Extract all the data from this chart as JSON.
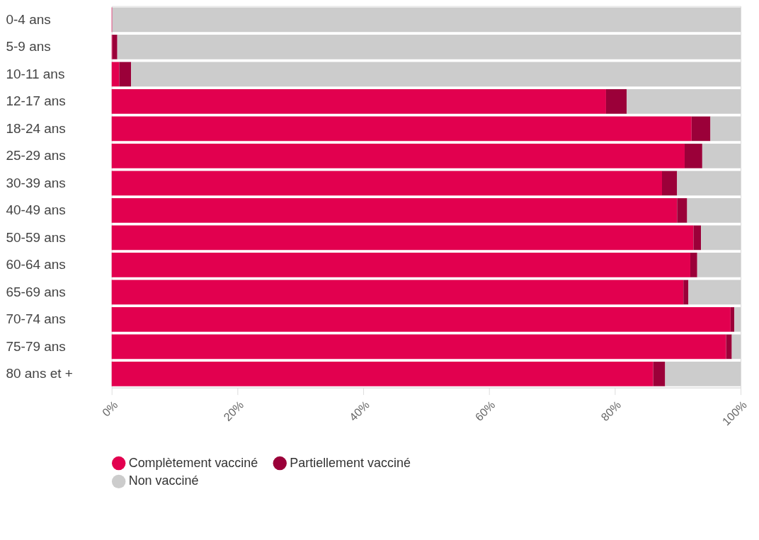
{
  "chart_data": {
    "type": "bar",
    "orientation": "horizontal",
    "stacked": true,
    "categories": [
      "0-4 ans",
      "5-9 ans",
      "10-11 ans",
      "12-17 ans",
      "18-24 ans",
      "25-29 ans",
      "30-39 ans",
      "40-49 ans",
      "50-59 ans",
      "60-64 ans",
      "65-69 ans",
      "70-74 ans",
      "75-79 ans",
      "80 ans et +"
    ],
    "series": [
      {
        "name": "Complètement vacciné",
        "color": "#e2004f",
        "values": [
          0.1,
          0.1,
          1.2,
          78.6,
          92.2,
          91.1,
          87.5,
          89.9,
          92.5,
          92.0,
          90.9,
          98.4,
          97.7,
          86.1
        ]
      },
      {
        "name": "Partiellement vacciné",
        "color": "#9b0039",
        "values": [
          0,
          0.8,
          1.9,
          3.3,
          3.0,
          2.8,
          2.4,
          1.6,
          1.2,
          1.1,
          0.8,
          0.6,
          0.9,
          1.9
        ]
      },
      {
        "name": "Non vacciné",
        "color": "#cccccc",
        "values": [
          99.9,
          99.1,
          96.9,
          18.1,
          4.8,
          6.1,
          10.1,
          8.5,
          6.3,
          6.9,
          8.3,
          1.0,
          1.4,
          12.0
        ]
      }
    ],
    "xlim": [
      0,
      100
    ],
    "xticks": [
      {
        "value": 0,
        "label": "0%"
      },
      {
        "value": 20,
        "label": "20%"
      },
      {
        "value": 40,
        "label": "40%"
      },
      {
        "value": 60,
        "label": "60%"
      },
      {
        "value": 80,
        "label": "80%"
      },
      {
        "value": 100,
        "label": "100%"
      }
    ],
    "grid": false,
    "legend": "bottom"
  }
}
